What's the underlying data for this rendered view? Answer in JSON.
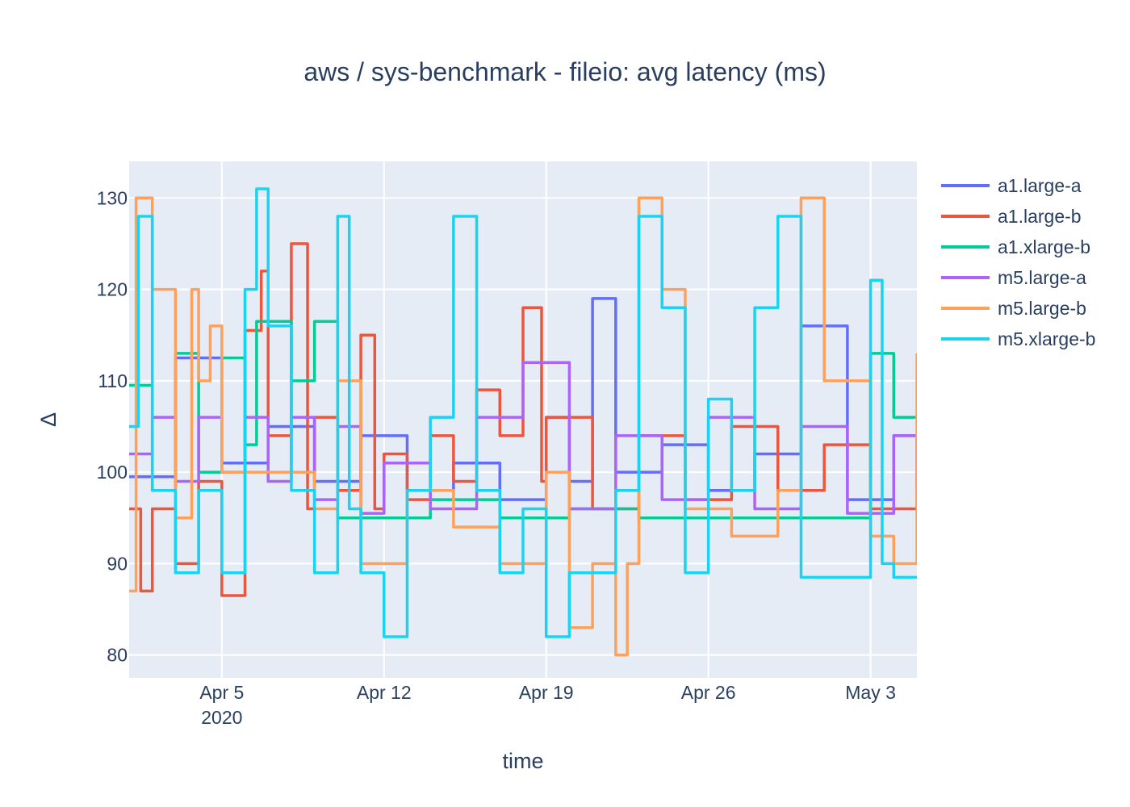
{
  "chart_data": {
    "type": "line",
    "title": "aws / sys-benchmark - fileio: avg latency (ms)",
    "xlabel": "time",
    "ylabel": "Δ",
    "x_range": [
      "2020-04-01",
      "2020-05-05"
    ],
    "ylim": [
      77.5,
      134
    ],
    "x_ticks": [
      {
        "date": "2020-04-05",
        "label": "Apr 5",
        "sublabel": "2020"
      },
      {
        "date": "2020-04-12",
        "label": "Apr 12",
        "sublabel": ""
      },
      {
        "date": "2020-04-19",
        "label": "Apr 19",
        "sublabel": ""
      },
      {
        "date": "2020-04-26",
        "label": "Apr 26",
        "sublabel": ""
      },
      {
        "date": "2020-05-03",
        "label": "May 3",
        "sublabel": ""
      }
    ],
    "y_ticks": [
      80,
      90,
      100,
      110,
      120,
      130
    ],
    "grid": true,
    "legend_position": "right",
    "plot_background": "#e5ecf6",
    "series": [
      {
        "name": "a1.large-a",
        "color": "#636efa",
        "x": [
          "2020-04-01",
          "2020-04-03",
          "2020-04-05",
          "2020-04-07",
          "2020-04-09",
          "2020-04-11",
          "2020-04-13",
          "2020-04-15",
          "2020-04-17",
          "2020-04-19",
          "2020-04-20",
          "2020-04-21",
          "2020-04-22",
          "2020-04-24",
          "2020-04-26",
          "2020-04-28",
          "2020-04-30",
          "2020-05-02",
          "2020-05-04",
          "2020-05-05"
        ],
        "y": [
          99.5,
          112.5,
          101,
          105,
          99,
          104,
          98,
          101,
          97,
          106,
          99,
          119,
          100,
          103,
          98,
          102,
          116,
          97,
          104,
          99
        ]
      },
      {
        "name": "a1.large-b",
        "color": "#ef553b",
        "x": [
          "2020-04-01",
          "2020-04-01.5",
          "2020-04-02",
          "2020-04-03",
          "2020-04-04",
          "2020-04-05",
          "2020-04-06",
          "2020-04-06.7",
          "2020-04-07",
          "2020-04-08",
          "2020-04-08.7",
          "2020-04-09",
          "2020-04-10",
          "2020-04-11",
          "2020-04-11.6",
          "2020-04-12",
          "2020-04-13",
          "2020-04-14",
          "2020-04-15",
          "2020-04-16",
          "2020-04-17",
          "2020-04-18",
          "2020-04-18.8",
          "2020-04-19",
          "2020-04-21",
          "2020-04-23",
          "2020-04-25",
          "2020-04-27",
          "2020-04-29",
          "2020-05-01",
          "2020-05-03",
          "2020-05-05"
        ],
        "y": [
          96,
          87,
          96,
          90,
          99,
          86.5,
          115.5,
          122,
          104,
          125,
          96,
          106,
          98,
          115,
          96,
          102,
          97,
          104,
          99,
          109,
          104,
          118,
          99,
          106,
          96,
          104,
          97,
          105,
          98,
          103,
          96,
          100
        ]
      },
      {
        "name": "a1.xlarge-b",
        "color": "#00cc96",
        "x": [
          "2020-04-01",
          "2020-04-02",
          "2020-04-03",
          "2020-04-04",
          "2020-04-05",
          "2020-04-06",
          "2020-04-06.5",
          "2020-04-07",
          "2020-04-08",
          "2020-04-09",
          "2020-04-10",
          "2020-04-11",
          "2020-04-14",
          "2020-04-17",
          "2020-04-20",
          "2020-04-23",
          "2020-04-26",
          "2020-04-29",
          "2020-05-01",
          "2020-05-03",
          "2020-05-04",
          "2020-05-05"
        ],
        "y": [
          109.5,
          98,
          113,
          100,
          112.5,
          103,
          116.5,
          116.5,
          110,
          116.5,
          95,
          95,
          97,
          95,
          96,
          95,
          95,
          95,
          95,
          113,
          106,
          106
        ]
      },
      {
        "name": "m5.large-a",
        "color": "#ab63fa",
        "x": [
          "2020-04-01",
          "2020-04-02",
          "2020-04-03",
          "2020-04-04",
          "2020-04-05",
          "2020-04-06",
          "2020-04-07",
          "2020-04-08",
          "2020-04-09",
          "2020-04-10",
          "2020-04-11",
          "2020-04-12",
          "2020-04-14",
          "2020-04-16",
          "2020-04-18",
          "2020-04-20",
          "2020-04-22",
          "2020-04-24",
          "2020-04-26",
          "2020-04-28",
          "2020-04-30",
          "2020-05-02",
          "2020-05-04",
          "2020-05-05"
        ],
        "y": [
          102,
          106,
          99,
          106,
          100,
          106,
          99,
          106,
          97,
          105,
          95.5,
          101,
          96,
          106,
          112,
          96,
          104,
          97,
          106,
          96,
          105,
          95.5,
          104,
          98
        ]
      },
      {
        "name": "m5.large-b",
        "color": "#ffa15a",
        "x": [
          "2020-04-01",
          "2020-04-01.3",
          "2020-04-02",
          "2020-04-03",
          "2020-04-03.7",
          "2020-04-04",
          "2020-04-04.5",
          "2020-04-05",
          "2020-04-07",
          "2020-04-09",
          "2020-04-10",
          "2020-04-11",
          "2020-04-13",
          "2020-04-15",
          "2020-04-17",
          "2020-04-19",
          "2020-04-20",
          "2020-04-21",
          "2020-04-22",
          "2020-04-22.5",
          "2020-04-23",
          "2020-04-24",
          "2020-04-25",
          "2020-04-27",
          "2020-04-29",
          "2020-04-30",
          "2020-05-01",
          "2020-05-02",
          "2020-05-03",
          "2020-05-04",
          "2020-05-05"
        ],
        "y": [
          87,
          130,
          120,
          95,
          120,
          110,
          116,
          100,
          100,
          96,
          110,
          90,
          98,
          94,
          90,
          100,
          83,
          90,
          80,
          90,
          130,
          120,
          96,
          93,
          98,
          130,
          110,
          110,
          93,
          90,
          113
        ]
      },
      {
        "name": "m5.xlarge-b",
        "color": "#19d3f3",
        "x": [
          "2020-04-01",
          "2020-04-01.4",
          "2020-04-02",
          "2020-04-03",
          "2020-04-04",
          "2020-04-05",
          "2020-04-06",
          "2020-04-06.5",
          "2020-04-07",
          "2020-04-08",
          "2020-04-09",
          "2020-04-10",
          "2020-04-10.5",
          "2020-04-11",
          "2020-04-12",
          "2020-04-13",
          "2020-04-14",
          "2020-04-15",
          "2020-04-16",
          "2020-04-17",
          "2020-04-18",
          "2020-04-19",
          "2020-04-20",
          "2020-04-21",
          "2020-04-22",
          "2020-04-23",
          "2020-04-24",
          "2020-04-25",
          "2020-04-26",
          "2020-04-27",
          "2020-04-28",
          "2020-04-29",
          "2020-04-30",
          "2020-05-01",
          "2020-05-02",
          "2020-05-03",
          "2020-05-03.5",
          "2020-05-04",
          "2020-05-05"
        ],
        "y": [
          105,
          128,
          98,
          89,
          98,
          89,
          120,
          131,
          116,
          98,
          89,
          128,
          96,
          89,
          82,
          98,
          106,
          128,
          98,
          89,
          96,
          82,
          89,
          89,
          98,
          128,
          118,
          89,
          108,
          98,
          118,
          128,
          88.5,
          88.5,
          88.5,
          121,
          90,
          88.5,
          88.5
        ]
      }
    ]
  }
}
